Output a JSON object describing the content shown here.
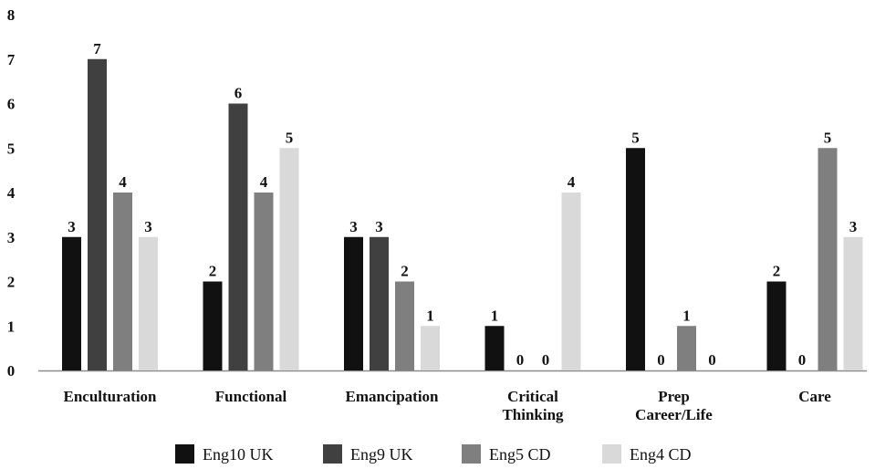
{
  "chart_data": {
    "type": "bar",
    "categories": [
      [
        "Enculturation"
      ],
      [
        "Functional"
      ],
      [
        "Emancipation"
      ],
      [
        "Critical",
        "Thinking"
      ],
      [
        "Prep",
        "Career/Life"
      ],
      [
        "Care"
      ]
    ],
    "series": [
      {
        "name": "Eng10 UK",
        "color": "#111111",
        "values": [
          3,
          2,
          3,
          1,
          5,
          2
        ]
      },
      {
        "name": "Eng9 UK",
        "color": "#404040",
        "values": [
          7,
          6,
          3,
          0,
          0,
          0
        ]
      },
      {
        "name": "Eng5 CD",
        "color": "#7f7f7f",
        "values": [
          4,
          4,
          2,
          0,
          1,
          5
        ]
      },
      {
        "name": "Eng4 CD",
        "color": "#d9d9d9",
        "values": [
          3,
          5,
          1,
          4,
          0,
          3
        ]
      }
    ],
    "ylim": [
      0,
      8
    ],
    "yticks": [
      0,
      1,
      2,
      3,
      4,
      5,
      6,
      7,
      8
    ],
    "data_labels": true,
    "grid": false,
    "legend": "bottom"
  }
}
